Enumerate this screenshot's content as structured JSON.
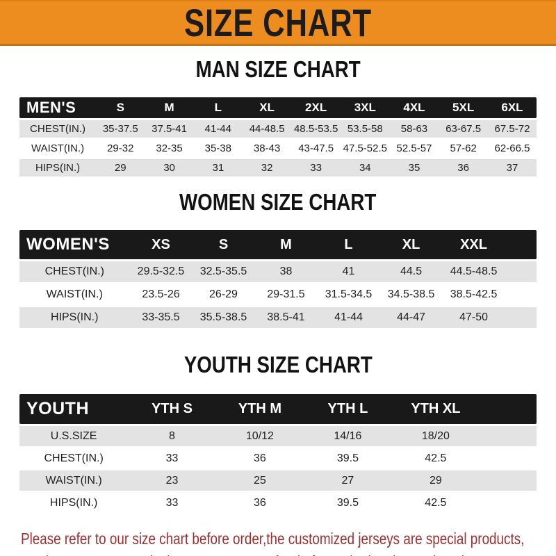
{
  "banner": {
    "title": "SIZE CHART"
  },
  "theme": {
    "banner_bg": "#ee8d1f",
    "bar_bg": "#191919",
    "row_shade": "#e3e3e3",
    "footer_color": "#9c3132"
  },
  "sections": [
    {
      "heading": "MAN SIZE CHART",
      "label": "MEN'S",
      "columns": [
        "S",
        "M",
        "L",
        "XL",
        "2XL",
        "3XL",
        "4XL",
        "5XL",
        "6XL"
      ],
      "rows": [
        {
          "label": "CHEST(IN.)",
          "values": [
            "35-37.5",
            "37.5-41",
            "41-44",
            "44-48.5",
            "48.5-53.5",
            "53.5-58",
            "58-63",
            "63-67.5",
            "67.5-72"
          ]
        },
        {
          "label": "WAIST(IN.)",
          "values": [
            "29-32",
            "32-35",
            "35-38",
            "38-43",
            "43-47.5",
            "47.5-52.5",
            "52.5-57",
            "57-62",
            "62-66.5"
          ]
        },
        {
          "label": "HIPS(IN.)",
          "values": [
            "29",
            "30",
            "31",
            "32",
            "33",
            "34",
            "35",
            "36",
            "37"
          ]
        }
      ]
    },
    {
      "heading": "WOMEN SIZE CHART",
      "label": "WOMEN'S",
      "columns": [
        "XS",
        "S",
        "M",
        "L",
        "XL",
        "XXL"
      ],
      "rows": [
        {
          "label": "CHEST(IN.)",
          "values": [
            "29.5-32.5",
            "32.5-35.5",
            "38",
            "41",
            "44.5",
            "44.5-48.5"
          ]
        },
        {
          "label": "WAIST(IN.)",
          "values": [
            "23.5-26",
            "26-29",
            "29-31.5",
            "31.5-34.5",
            "34.5-38.5",
            "38.5-42.5"
          ]
        },
        {
          "label": "HIPS(IN.)",
          "values": [
            "33-35.5",
            "35.5-38.5",
            "38.5-41",
            "41-44",
            "44-47",
            "47-50"
          ]
        }
      ]
    },
    {
      "heading": "YOUTH SIZE CHART",
      "label": "YOUTH",
      "columns": [
        "YTH S",
        "YTH M",
        "YTH L",
        "YTH XL"
      ],
      "rows": [
        {
          "label": "U.S.SIZE",
          "values": [
            "8",
            "10/12",
            "14/16",
            "18/20"
          ]
        },
        {
          "label": "CHEST(IN.)",
          "values": [
            "33",
            "36",
            "39.5",
            "42.5"
          ]
        },
        {
          "label": "WAIST(IN.)",
          "values": [
            "23",
            "25",
            "27",
            "29"
          ]
        },
        {
          "label": "HIPS(IN.)",
          "values": [
            "33",
            "36",
            "39.5",
            "42.5"
          ]
        }
      ]
    }
  ],
  "footer": {
    "line1": "Please refer to our size chart before order,the customized jerseys are special products,",
    "line2": "we don't accept cancel, change, teturn or refund after order has been placed!"
  }
}
